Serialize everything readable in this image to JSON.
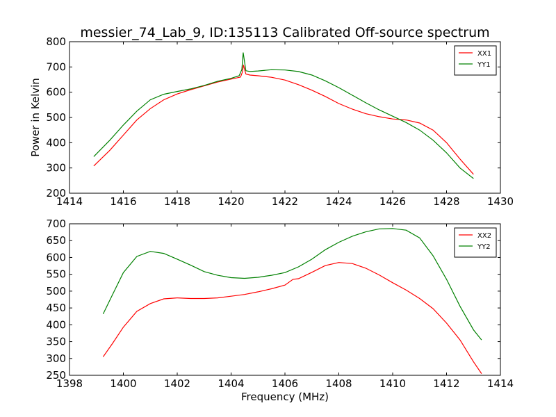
{
  "figure": {
    "title": "messier_74_Lab_9, ID:135113 Calibrated Off-source spectrum"
  },
  "chart_data": [
    {
      "type": "line",
      "title": "messier_74_Lab_9, ID:135113 Calibrated Off-source spectrum",
      "xlabel": "",
      "ylabel": "Power in Kelvin",
      "xlim": [
        1414,
        1430
      ],
      "ylim": [
        200,
        800
      ],
      "xticks": [
        1414,
        1416,
        1418,
        1420,
        1422,
        1424,
        1426,
        1428,
        1430
      ],
      "yticks": [
        200,
        300,
        400,
        500,
        600,
        700,
        800
      ],
      "grid": false,
      "legend_position": "top-right",
      "series": [
        {
          "name": "XX1",
          "color": "#ff0000",
          "points": [
            [
              1414.9,
              308
            ],
            [
              1415.5,
              370
            ],
            [
              1416.0,
              430
            ],
            [
              1416.5,
              490
            ],
            [
              1417.0,
              535
            ],
            [
              1417.5,
              570
            ],
            [
              1418.0,
              593
            ],
            [
              1418.5,
              610
            ],
            [
              1419.0,
              625
            ],
            [
              1419.5,
              640
            ],
            [
              1420.0,
              652
            ],
            [
              1420.35,
              660
            ],
            [
              1420.42,
              680
            ],
            [
              1420.46,
              708
            ],
            [
              1420.5,
              690
            ],
            [
              1420.55,
              672
            ],
            [
              1420.7,
              668
            ],
            [
              1421.0,
              665
            ],
            [
              1421.5,
              659
            ],
            [
              1422.0,
              648
            ],
            [
              1422.5,
              630
            ],
            [
              1423.0,
              608
            ],
            [
              1423.5,
              583
            ],
            [
              1424.0,
              555
            ],
            [
              1424.5,
              533
            ],
            [
              1425.0,
              515
            ],
            [
              1425.5,
              503
            ],
            [
              1426.0,
              494
            ],
            [
              1426.5,
              490
            ],
            [
              1427.0,
              478
            ],
            [
              1427.5,
              450
            ],
            [
              1428.0,
              400
            ],
            [
              1428.5,
              335
            ],
            [
              1429.0,
              275
            ]
          ]
        },
        {
          "name": "YY1",
          "color": "#008000",
          "points": [
            [
              1414.9,
              345
            ],
            [
              1415.5,
              410
            ],
            [
              1416.0,
              470
            ],
            [
              1416.5,
              525
            ],
            [
              1417.0,
              570
            ],
            [
              1417.5,
              592
            ],
            [
              1418.0,
              603
            ],
            [
              1418.5,
              613
            ],
            [
              1419.0,
              627
            ],
            [
              1419.5,
              643
            ],
            [
              1420.0,
              655
            ],
            [
              1420.3,
              665
            ],
            [
              1420.4,
              690
            ],
            [
              1420.45,
              757
            ],
            [
              1420.5,
              720
            ],
            [
              1420.55,
              685
            ],
            [
              1420.7,
              682
            ],
            [
              1421.0,
              684
            ],
            [
              1421.5,
              689
            ],
            [
              1422.0,
              688
            ],
            [
              1422.5,
              682
            ],
            [
              1423.0,
              668
            ],
            [
              1423.5,
              645
            ],
            [
              1424.0,
              618
            ],
            [
              1424.5,
              588
            ],
            [
              1425.0,
              558
            ],
            [
              1425.5,
              530
            ],
            [
              1426.0,
              505
            ],
            [
              1426.5,
              480
            ],
            [
              1427.0,
              450
            ],
            [
              1427.5,
              410
            ],
            [
              1428.0,
              360
            ],
            [
              1428.5,
              300
            ],
            [
              1429.0,
              258
            ]
          ]
        }
      ]
    },
    {
      "type": "line",
      "title": "",
      "xlabel": "Frequency (MHz)",
      "ylabel": "",
      "xlim": [
        1398,
        1414
      ],
      "ylim": [
        250,
        700
      ],
      "xticks": [
        1398,
        1400,
        1402,
        1404,
        1406,
        1408,
        1410,
        1412,
        1414
      ],
      "yticks": [
        250,
        300,
        350,
        400,
        450,
        500,
        550,
        600,
        650,
        700
      ],
      "grid": false,
      "legend_position": "top-right",
      "series": [
        {
          "name": "XX2",
          "color": "#ff0000",
          "points": [
            [
              1399.25,
              305
            ],
            [
              1399.6,
              345
            ],
            [
              1400.0,
              393
            ],
            [
              1400.5,
              440
            ],
            [
              1401.0,
              463
            ],
            [
              1401.5,
              477
            ],
            [
              1402.0,
              480
            ],
            [
              1402.5,
              478
            ],
            [
              1403.0,
              478
            ],
            [
              1403.5,
              480
            ],
            [
              1404.0,
              485
            ],
            [
              1404.5,
              490
            ],
            [
              1405.0,
              498
            ],
            [
              1405.5,
              507
            ],
            [
              1406.0,
              518
            ],
            [
              1406.3,
              535
            ],
            [
              1406.5,
              537
            ],
            [
              1407.0,
              556
            ],
            [
              1407.5,
              576
            ],
            [
              1408.0,
              585
            ],
            [
              1408.5,
              582
            ],
            [
              1409.0,
              568
            ],
            [
              1409.5,
              548
            ],
            [
              1410.0,
              525
            ],
            [
              1410.5,
              503
            ],
            [
              1411.0,
              478
            ],
            [
              1411.5,
              448
            ],
            [
              1412.0,
              405
            ],
            [
              1412.5,
              355
            ],
            [
              1413.0,
              290
            ],
            [
              1413.3,
              255
            ]
          ]
        },
        {
          "name": "YY2",
          "color": "#008000",
          "points": [
            [
              1399.25,
              432
            ],
            [
              1399.6,
              490
            ],
            [
              1400.0,
              555
            ],
            [
              1400.5,
              603
            ],
            [
              1401.0,
              618
            ],
            [
              1401.5,
              612
            ],
            [
              1402.0,
              595
            ],
            [
              1402.5,
              577
            ],
            [
              1403.0,
              558
            ],
            [
              1403.5,
              547
            ],
            [
              1404.0,
              540
            ],
            [
              1404.5,
              538
            ],
            [
              1405.0,
              541
            ],
            [
              1405.5,
              547
            ],
            [
              1406.0,
              555
            ],
            [
              1406.5,
              572
            ],
            [
              1407.0,
              595
            ],
            [
              1407.5,
              623
            ],
            [
              1408.0,
              645
            ],
            [
              1408.5,
              663
            ],
            [
              1409.0,
              676
            ],
            [
              1409.5,
              685
            ],
            [
              1410.0,
              686
            ],
            [
              1410.5,
              681
            ],
            [
              1411.0,
              658
            ],
            [
              1411.5,
              605
            ],
            [
              1412.0,
              535
            ],
            [
              1412.5,
              455
            ],
            [
              1413.0,
              385
            ],
            [
              1413.3,
              355
            ]
          ]
        }
      ]
    }
  ]
}
